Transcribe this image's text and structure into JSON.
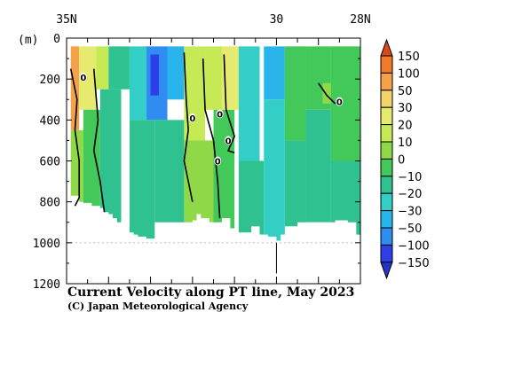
{
  "chart_data": {
    "type": "heatmap",
    "title": "Current Velocity along PT line, May 2023",
    "subtitle": "(C) Japan Meteorological Agency",
    "ylabel": "(m)",
    "x_ticks_top": [
      {
        "lat": 35,
        "label": "35N"
      },
      {
        "lat": 30,
        "label": "30"
      },
      {
        "lat": 28,
        "label": "28N"
      }
    ],
    "y_ticks": [
      0,
      200,
      400,
      600,
      800,
      1000,
      1200
    ],
    "ylim": [
      0,
      1200
    ],
    "xlim_lat": [
      35,
      28
    ],
    "contour_label": "0",
    "colorbar": {
      "levels": [
        "150",
        "100",
        "50",
        "30",
        "20",
        "10",
        "0",
        "−10",
        "−20",
        "−30",
        "−50",
        "−100",
        "−150"
      ],
      "colors": [
        "#d84a1c",
        "#f07a2a",
        "#f4a24a",
        "#f2d36c",
        "#e6ea6e",
        "#c6ea56",
        "#8fd848",
        "#43c85a",
        "#2fc290",
        "#33cfc6",
        "#2ab4ec",
        "#2f8cf0",
        "#2e3ee8",
        "#2233c8"
      ]
    },
    "profile": [
      {
        "lat": 34.9,
        "bottom": 770
      },
      {
        "lat": 34.7,
        "bottom": 805
      },
      {
        "lat": 34.4,
        "bottom": 820
      },
      {
        "lat": 34.2,
        "bottom": 830
      },
      {
        "lat": 34.1,
        "bottom": 850
      },
      {
        "lat": 34.0,
        "bottom": 860
      },
      {
        "lat": 33.9,
        "bottom": 880
      },
      {
        "lat": 33.8,
        "bottom": 900
      },
      {
        "lat": 33.6,
        "bottom": 940
      },
      {
        "lat": 33.5,
        "bottom": 950
      },
      {
        "lat": 33.4,
        "bottom": 960
      },
      {
        "lat": 33.3,
        "bottom": 970
      },
      {
        "lat": 33.1,
        "bottom": 980
      },
      {
        "lat": 32.9,
        "bottom": 980
      },
      {
        "lat": 32.7,
        "bottom": 975
      },
      {
        "lat": 32.6,
        "bottom": 950
      },
      {
        "lat": 32.4,
        "bottom": 930
      },
      {
        "lat": 32.2,
        "bottom": 930
      },
      {
        "lat": 32.0,
        "bottom": 890
      },
      {
        "lat": 31.9,
        "bottom": 860
      },
      {
        "lat": 31.8,
        "bottom": 880
      },
      {
        "lat": 31.6,
        "bottom": 900
      },
      {
        "lat": 31.3,
        "bottom": 880
      },
      {
        "lat": 31.1,
        "bottom": 930
      },
      {
        "lat": 30.9,
        "bottom": 950
      },
      {
        "lat": 30.6,
        "bottom": 920
      },
      {
        "lat": 30.4,
        "bottom": 960
      },
      {
        "lat": 30.2,
        "bottom": 970
      },
      {
        "lat": 30.0,
        "bottom": 990
      },
      {
        "lat": 29.9,
        "bottom": 960
      },
      {
        "lat": 29.7,
        "bottom": 920
      },
      {
        "lat": 29.5,
        "bottom": 900
      },
      {
        "lat": 29.0,
        "bottom": 900
      },
      {
        "lat": 28.6,
        "bottom": 890
      },
      {
        "lat": 28.3,
        "bottom": 900
      },
      {
        "lat": 28.1,
        "bottom": 960
      },
      {
        "lat": 28.0,
        "bottom": 970
      }
    ],
    "cells": [
      {
        "lat0": 35.0,
        "lat1": 34.7,
        "d0": 40,
        "d1": 450,
        "value": 60
      },
      {
        "lat0": 34.7,
        "lat1": 34.3,
        "d0": 40,
        "d1": 350,
        "value": 25
      },
      {
        "lat0": 34.3,
        "lat1": 34.0,
        "d0": 40,
        "d1": 250,
        "value": 15
      },
      {
        "lat0": 35.0,
        "lat1": 34.6,
        "d0": 450,
        "d1": 800,
        "value": 8
      },
      {
        "lat0": 34.6,
        "lat1": 34.2,
        "d0": 350,
        "d1": 900,
        "value": -5
      },
      {
        "lat0": 34.2,
        "lat1": 33.7,
        "d0": 250,
        "d1": 950,
        "value": -15
      },
      {
        "lat0": 34.0,
        "lat1": 33.5,
        "d0": 40,
        "d1": 250,
        "value": -12
      },
      {
        "lat0": 33.5,
        "lat1": 33.1,
        "d0": 40,
        "d1": 400,
        "value": -30
      },
      {
        "lat0": 33.5,
        "lat1": 32.9,
        "d0": 400,
        "d1": 980,
        "value": -18
      },
      {
        "lat0": 33.1,
        "lat1": 32.6,
        "d0": 40,
        "d1": 400,
        "value": -55
      },
      {
        "lat0": 33.0,
        "lat1": 32.8,
        "d0": 80,
        "d1": 280,
        "value": -110
      },
      {
        "lat0": 32.6,
        "lat1": 32.2,
        "d0": 40,
        "d1": 300,
        "value": -35
      },
      {
        "lat0": 32.9,
        "lat1": 32.2,
        "d0": 400,
        "d1": 900,
        "value": -20
      },
      {
        "lat0": 32.2,
        "lat1": 31.7,
        "d0": 40,
        "d1": 500,
        "value": 18
      },
      {
        "lat0": 32.2,
        "lat1": 31.5,
        "d0": 500,
        "d1": 900,
        "value": 5
      },
      {
        "lat0": 31.7,
        "lat1": 31.3,
        "d0": 40,
        "d1": 350,
        "value": 12
      },
      {
        "lat0": 31.5,
        "lat1": 31.0,
        "d0": 350,
        "d1": 930,
        "value": -8
      },
      {
        "lat0": 31.3,
        "lat1": 30.9,
        "d0": 40,
        "d1": 350,
        "value": 20
      },
      {
        "lat0": 30.9,
        "lat1": 30.4,
        "d0": 40,
        "d1": 600,
        "value": -22
      },
      {
        "lat0": 30.9,
        "lat1": 30.3,
        "d0": 600,
        "d1": 960,
        "value": -15
      },
      {
        "lat0": 30.3,
        "lat1": 29.8,
        "d0": 40,
        "d1": 300,
        "value": -40
      },
      {
        "lat0": 30.3,
        "lat1": 29.8,
        "d0": 300,
        "d1": 990,
        "value": -28
      },
      {
        "lat0": 29.8,
        "lat1": 29.3,
        "d0": 40,
        "d1": 500,
        "value": -8
      },
      {
        "lat0": 29.8,
        "lat1": 29.3,
        "d0": 500,
        "d1": 920,
        "value": -20
      },
      {
        "lat0": 29.3,
        "lat1": 28.7,
        "d0": 40,
        "d1": 350,
        "value": -3
      },
      {
        "lat0": 29.3,
        "lat1": 28.7,
        "d0": 350,
        "d1": 900,
        "value": -12
      },
      {
        "lat0": 28.9,
        "lat1": 28.6,
        "d0": 220,
        "d1": 320,
        "value": 6
      },
      {
        "lat0": 28.7,
        "lat1": 28.0,
        "d0": 40,
        "d1": 600,
        "value": -10
      },
      {
        "lat0": 28.7,
        "lat1": 28.0,
        "d0": 600,
        "d1": 970,
        "value": -18
      }
    ],
    "zero_contours": [
      [
        [
          34.9,
          150
        ],
        [
          34.75,
          300
        ],
        [
          34.8,
          450
        ],
        [
          34.7,
          600
        ],
        [
          34.7,
          780
        ],
        [
          34.8,
          820
        ]
      ],
      [
        [
          34.35,
          150
        ],
        [
          34.25,
          400
        ],
        [
          34.35,
          550
        ],
        [
          34.2,
          700
        ],
        [
          34.1,
          850
        ]
      ],
      [
        [
          32.2,
          70
        ],
        [
          32.15,
          300
        ],
        [
          32.1,
          450
        ],
        [
          32.2,
          600
        ],
        [
          32.0,
          800
        ]
      ],
      [
        [
          31.75,
          100
        ],
        [
          31.7,
          350
        ],
        [
          31.5,
          500
        ],
        [
          31.4,
          700
        ],
        [
          31.35,
          880
        ]
      ],
      [
        [
          31.25,
          80
        ],
        [
          31.2,
          350
        ],
        [
          31.0,
          480
        ],
        [
          31.15,
          550
        ],
        [
          31.0,
          560
        ]
      ],
      [
        [
          29.0,
          220
        ],
        [
          28.8,
          280
        ],
        [
          28.6,
          320
        ]
      ]
    ],
    "zero_labels": [
      {
        "lat": 34.6,
        "depth": 190
      },
      {
        "lat": 32.0,
        "depth": 390
      },
      {
        "lat": 31.35,
        "depth": 370
      },
      {
        "lat": 31.15,
        "depth": 500
      },
      {
        "lat": 31.4,
        "depth": 600
      },
      {
        "lat": 28.5,
        "depth": 310
      }
    ]
  }
}
